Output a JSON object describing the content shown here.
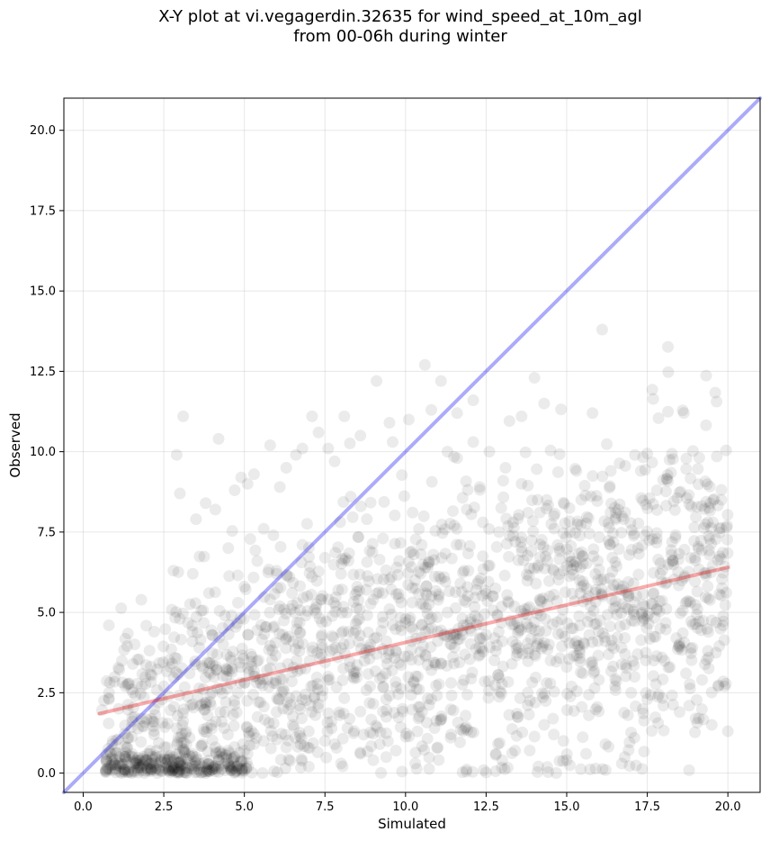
{
  "chart_data": {
    "type": "scatter",
    "title": "X-Y plot at vi.vegagerdin.32635 for wind_speed_at_10m_agl\nfrom 00-06h during winter",
    "xlabel": "Simulated",
    "ylabel": "Observed",
    "xlim": [
      -0.6,
      21.0
    ],
    "ylim": [
      -0.6,
      21.0
    ],
    "xticks": [
      "0.0",
      "2.5",
      "5.0",
      "7.5",
      "10.0",
      "12.5",
      "15.0",
      "17.5",
      "20.0"
    ],
    "yticks": [
      "0.0",
      "2.5",
      "5.0",
      "7.5",
      "10.0",
      "12.5",
      "15.0",
      "17.5",
      "20.0"
    ],
    "grid": true,
    "colors": {
      "points": "#000000",
      "identity_line": "#0000ee",
      "fit_line": "#ee0000"
    },
    "reference_lines": [
      {
        "kind": "identity",
        "x": [
          -0.6,
          21.0
        ],
        "y": [
          -0.6,
          21.0
        ]
      },
      {
        "kind": "linear-fit",
        "x": [
          0.5,
          20.0
        ],
        "y": [
          1.85,
          6.4
        ]
      }
    ],
    "points_note_count": 1800,
    "series": [
      {
        "x": [
          0.7,
          1.0,
          1.2,
          1.4,
          1.5,
          1.7,
          1.9,
          2.1,
          2.3,
          0.9,
          1.3,
          1.6,
          2.0,
          2.4,
          1.1,
          1.8,
          2.2,
          2.6,
          2.8,
          3.0,
          3.2,
          3.4,
          3.6,
          3.8,
          4.0,
          4.2,
          4.4,
          3.1,
          3.5,
          3.9,
          4.3,
          2.9,
          3.3,
          3.7,
          4.1,
          4.5,
          4.7,
          4.9,
          5.1,
          5.3,
          0.8,
          1.5,
          2.5,
          2.7,
          3.0,
          3.6,
          4.0,
          4.6,
          5.0,
          5.5,
          6.0,
          6.5,
          7.0,
          7.5,
          2.2,
          2.9,
          3.4,
          3.9,
          4.4,
          4.8,
          5.2,
          5.7,
          6.2,
          6.7,
          7.2,
          7.7,
          8.2,
          8.7,
          9.2,
          9.7,
          2.8,
          3.1,
          3.5,
          4.1,
          4.7,
          5.3,
          5.9,
          6.4,
          6.9,
          7.4,
          7.9,
          8.4,
          8.9,
          9.4,
          9.9,
          10.4,
          10.9,
          11.4,
          3.0,
          3.8,
          4.5,
          5.1,
          5.8,
          6.3,
          6.8,
          7.3,
          7.8,
          8.3,
          8.8,
          9.3,
          9.8,
          10.3,
          10.8,
          11.3,
          11.8,
          12.3,
          12.8,
          13.3,
          4.2,
          4.9,
          5.6,
          6.1,
          6.6,
          7.1,
          7.6,
          8.1,
          8.6,
          9.1,
          9.6,
          10.1,
          10.6,
          11.1,
          11.6,
          12.1,
          12.6,
          13.1,
          13.6,
          14.1,
          14.6,
          15.1,
          5.0,
          5.4,
          6.0,
          6.8,
          7.5,
          8.0,
          8.5,
          9.0,
          9.5,
          10.0,
          10.5,
          11.0,
          11.5,
          12.0,
          12.5,
          13.0,
          13.5,
          14.0,
          14.5,
          15.0,
          15.5,
          16.0,
          16.5,
          17.0,
          17.5,
          18.0,
          18.5,
          19.0,
          19.5,
          20.0,
          10.2,
          10.7,
          11.2,
          11.7,
          12.2,
          12.7,
          13.2,
          13.7,
          14.2,
          14.7,
          15.2,
          15.7,
          16.2,
          16.7,
          17.2,
          17.7,
          18.2,
          18.7,
          19.2,
          19.7,
          11.9,
          12.4,
          12.9,
          13.4,
          13.9,
          14.4,
          14.9,
          15.4,
          15.9,
          16.4,
          16.9,
          17.4,
          17.9,
          18.4,
          18.9,
          19.4,
          9.5,
          10.8,
          11.3,
          12.1,
          13.6,
          14.3,
          15.8,
          16.1,
          17.3,
          19.8,
          10.5,
          11.6,
          12.3,
          13.8,
          15.3,
          16.6,
          17.8,
          14.0,
          11.0,
          15.6,
          16.2,
          14.3,
          15.0,
          16.8,
          12.8,
          13.0,
          14.9,
          8.0,
          9.0,
          6.3,
          5.6,
          3.2,
          4.3,
          2.9,
          7.0,
          10.3,
          9.4,
          13.4,
          14.6,
          16.9,
          17.1,
          18.8,
          19.1,
          19.9,
          7.8,
          8.6,
          4.4,
          6.6,
          7.6,
          5.9,
          4.0,
          3.3
        ],
        "y": [
          0.1,
          0.1,
          0.0,
          0.1,
          0.0,
          0.1,
          0.0,
          0.1,
          0.0,
          0.9,
          0.5,
          0.3,
          0.6,
          0.2,
          2.0,
          1.7,
          1.2,
          0.8,
          0.5,
          0.1,
          0.0,
          0.2,
          0.1,
          0.0,
          0.1,
          0.2,
          0.3,
          0.7,
          0.5,
          0.4,
          0.6,
          1.4,
          1.1,
          0.9,
          0.8,
          0.7,
          0.5,
          0.4,
          0.6,
          0.9,
          2.3,
          2.6,
          2.7,
          3.3,
          4.8,
          3.9,
          4.3,
          3.5,
          2.8,
          2.2,
          1.9,
          1.5,
          1.3,
          1.0,
          4.4,
          9.9,
          6.2,
          5.6,
          4.9,
          5.3,
          3.7,
          3.2,
          2.6,
          2.1,
          1.8,
          1.6,
          1.4,
          1.2,
          0.9,
          0.7,
          6.3,
          11.1,
          7.9,
          8.2,
          8.8,
          9.3,
          7.4,
          6.1,
          4.9,
          4.0,
          3.6,
          3.1,
          2.7,
          2.3,
          2.0,
          1.7,
          1.4,
          1.1,
          8.7,
          8.4,
          7.0,
          9.0,
          10.2,
          9.5,
          10.1,
          10.6,
          9.7,
          8.6,
          7.9,
          7.3,
          6.6,
          6.0,
          5.5,
          5.0,
          4.6,
          4.2,
          3.8,
          3.4,
          10.4,
          9.2,
          7.6,
          8.9,
          9.9,
          11.1,
          10.1,
          11.1,
          10.5,
          12.2,
          10.3,
          11.0,
          12.7,
          12.2,
          11.2,
          11.6,
          10.0,
          9.5,
          9.0,
          8.5,
          8.0,
          7.5,
          5.8,
          6.6,
          6.2,
          7.1,
          6.7,
          6.2,
          5.8,
          5.4,
          5.1,
          4.8,
          4.6,
          4.4,
          4.2,
          4.5,
          4.3,
          4.1,
          3.9,
          3.7,
          3.5,
          3.3,
          3.1,
          2.9,
          2.7,
          2.5,
          2.3,
          2.1,
          1.9,
          1.7,
          1.5,
          1.3,
          6.9,
          6.5,
          6.1,
          5.9,
          5.7,
          5.5,
          5.3,
          5.1,
          4.9,
          4.7,
          4.5,
          4.3,
          4.1,
          3.9,
          3.7,
          3.5,
          3.3,
          3.1,
          2.9,
          2.7,
          8.2,
          7.8,
          7.5,
          7.2,
          6.9,
          6.6,
          6.3,
          6.0,
          5.7,
          5.4,
          5.1,
          4.8,
          4.5,
          4.2,
          3.9,
          3.6,
          10.9,
          11.3,
          10.0,
          10.3,
          11.1,
          11.5,
          11.2,
          13.8,
          9.4,
          8.5,
          7.1,
          9.8,
          8.9,
          8.1,
          9.4,
          8.2,
          8.8,
          12.3,
          0.8,
          0.6,
          0.9,
          1.5,
          0.4,
          0.5,
          0.6,
          0.4,
          1.0,
          0.3,
          0.4,
          0.8,
          1.0,
          0.9,
          1.6,
          0.6,
          0.2,
          0.3,
          0.5,
          0.7,
          1.2,
          1.8,
          1.1,
          2.1,
          1.7,
          2.7,
          0.9,
          0.6,
          1.9,
          2.4,
          3.0,
          2.8,
          2.5,
          3.1
        ],
        "count_note": "dense cloud; representative subset plus procedurally generated bulk"
      }
    ]
  }
}
